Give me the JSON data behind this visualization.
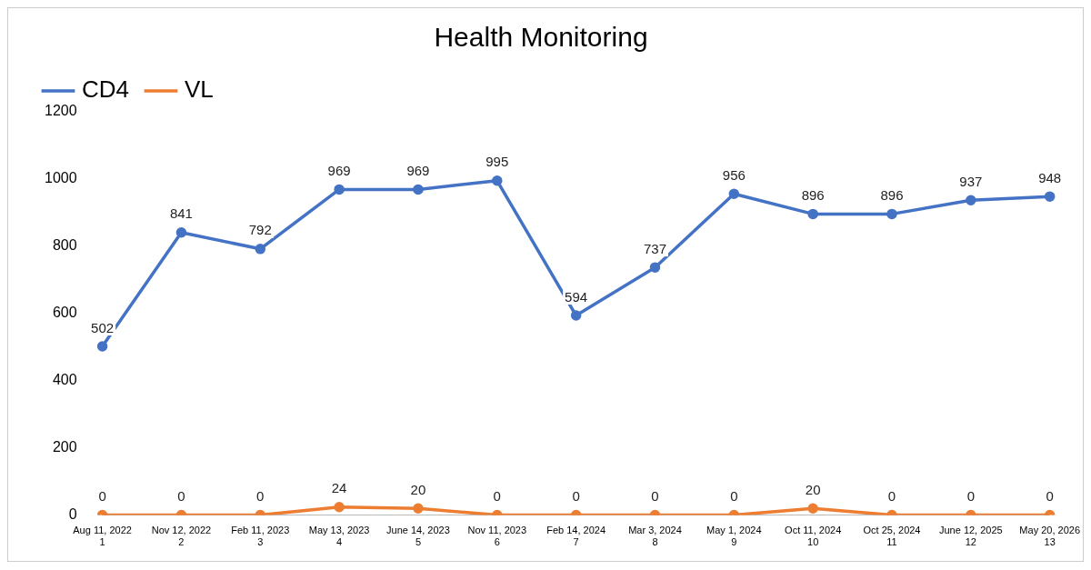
{
  "chart_data": {
    "type": "line",
    "title": "Health Monitoring",
    "categories": [
      "Aug 11, 2022\n1",
      "Nov 12, 2022\n2",
      "Feb 11, 2023\n3",
      "May 13, 2023\n4",
      "June 14, 2023\n5",
      "Nov 11, 2023\n6",
      "Feb 14, 2024\n7",
      "Mar 3, 2024\n8",
      "May 1, 2024\n9",
      "Oct 11, 2024\n10",
      "Oct 25, 2024\n11",
      "June 12, 2025\n12",
      "May 20, 2026\n13"
    ],
    "series": [
      {
        "name": "CD4",
        "color": "#4472c4",
        "values": [
          502,
          841,
          792,
          969,
          969,
          995,
          594,
          737,
          956,
          896,
          896,
          937,
          948
        ]
      },
      {
        "name": "VL",
        "color": "#ed7d31",
        "values": [
          0,
          0,
          0,
          24,
          20,
          0,
          0,
          0,
          0,
          20,
          0,
          0,
          0
        ]
      }
    ],
    "ylim": [
      0,
      1200
    ],
    "yticks": [
      0,
      200,
      400,
      600,
      800,
      1000,
      1200
    ],
    "grid": false,
    "legend": "top left",
    "marker": "circle",
    "line_style": "solid",
    "data_labels": true
  }
}
